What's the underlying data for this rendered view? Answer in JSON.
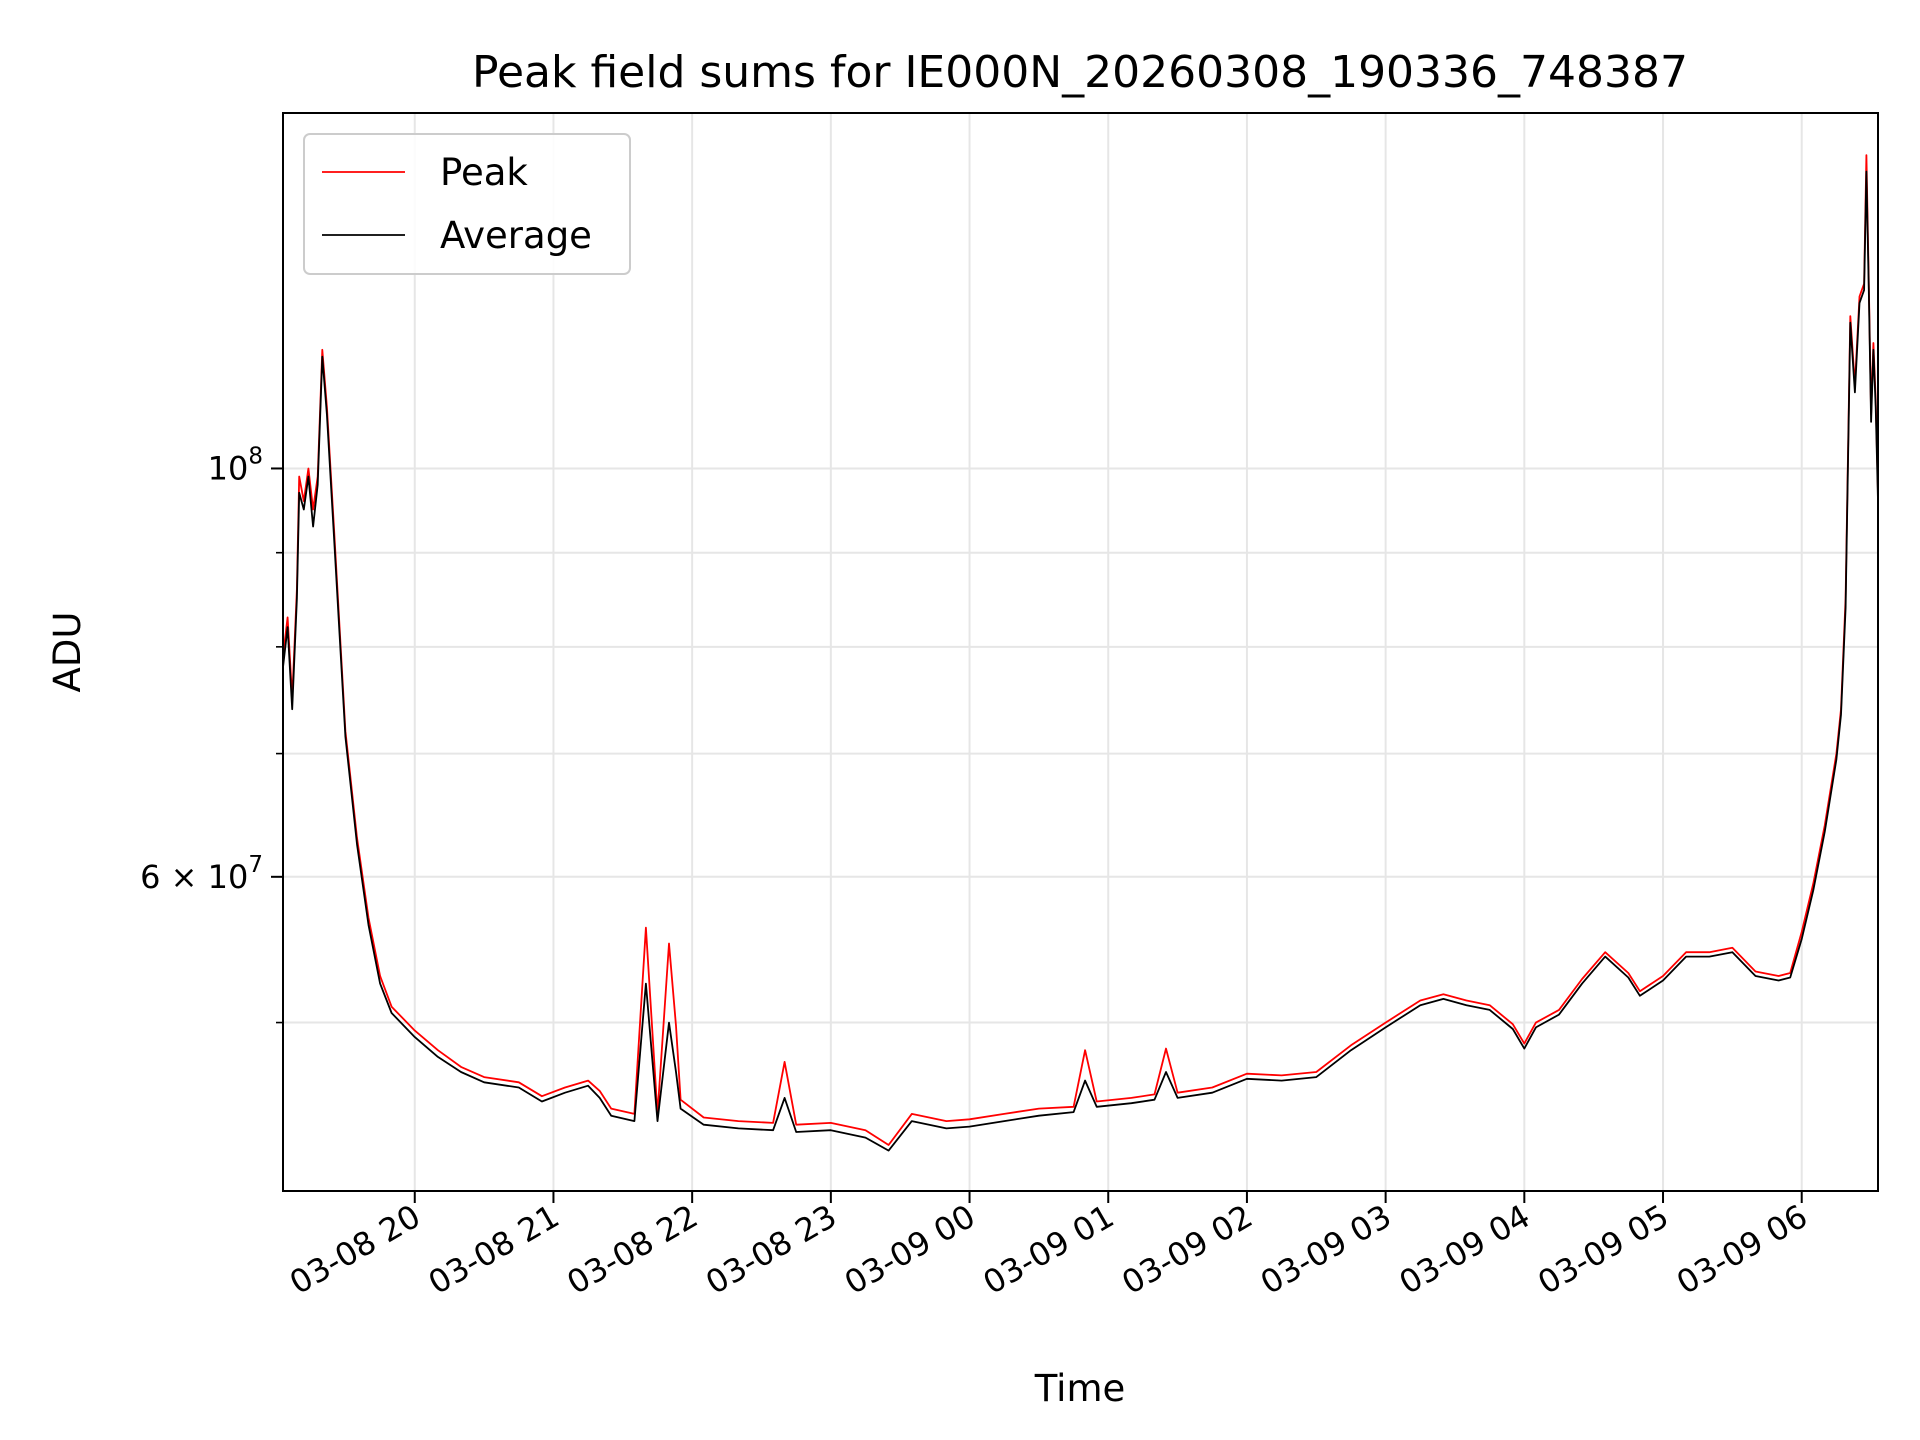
{
  "chart_data": {
    "type": "line",
    "title": "Peak field sums for IE000N_20260308_190336_748387",
    "xlabel": "Time",
    "ylabel": "ADU",
    "yscale": "log",
    "grid": true,
    "legend_position": "top-left",
    "xlim": [
      "03-08 19:03",
      "03-09 06:33"
    ],
    "ylim": [
      40500000,
      156000000
    ],
    "x_ticks": [
      "03-08 20",
      "03-08 21",
      "03-08 22",
      "03-08 23",
      "03-09 00",
      "03-09 01",
      "03-09 02",
      "03-09 03",
      "03-09 04",
      "03-09 05",
      "03-09 06"
    ],
    "y_tick_labels": [
      {
        "value": 100000000,
        "base": "10",
        "exp": "8",
        "prefix": ""
      },
      {
        "value": 60000000,
        "base": "10",
        "exp": "7",
        "prefix": "6 × "
      }
    ],
    "y_minor_ticks": [
      50000000,
      70000000,
      80000000,
      90000000
    ],
    "series": [
      {
        "name": "Peak",
        "color": "#ff0000",
        "points": [
          [
            "03-08 19:03",
            79000000
          ],
          [
            "03-08 19:05",
            83000000
          ],
          [
            "03-08 19:07",
            75000000
          ],
          [
            "03-08 19:09",
            86000000
          ],
          [
            "03-08 19:10",
            99000000
          ],
          [
            "03-08 19:12",
            96000000
          ],
          [
            "03-08 19:14",
            100000000
          ],
          [
            "03-08 19:16",
            95000000
          ],
          [
            "03-08 19:18",
            99000000
          ],
          [
            "03-08 19:20",
            116000000
          ],
          [
            "03-08 19:22",
            108000000
          ],
          [
            "03-08 19:25",
            93000000
          ],
          [
            "03-08 19:30",
            72000000
          ],
          [
            "03-08 19:35",
            63000000
          ],
          [
            "03-08 19:40",
            57000000
          ],
          [
            "03-08 19:45",
            53000000
          ],
          [
            "03-08 19:50",
            51000000
          ],
          [
            "03-08 20:00",
            49500000
          ],
          [
            "03-08 20:10",
            48300000
          ],
          [
            "03-08 20:20",
            47300000
          ],
          [
            "03-08 20:30",
            46700000
          ],
          [
            "03-08 20:45",
            46400000
          ],
          [
            "03-08 20:55",
            45600000
          ],
          [
            "03-08 21:05",
            46100000
          ],
          [
            "03-08 21:15",
            46500000
          ],
          [
            "03-08 21:20",
            45900000
          ],
          [
            "03-08 21:25",
            44900000
          ],
          [
            "03-08 21:35",
            44600000
          ],
          [
            "03-08 21:40",
            56300000
          ],
          [
            "03-08 21:45",
            44600000
          ],
          [
            "03-08 21:50",
            55200000
          ],
          [
            "03-08 21:53",
            49800000
          ],
          [
            "03-08 21:55",
            45400000
          ],
          [
            "03-08 22:05",
            44400000
          ],
          [
            "03-08 22:20",
            44200000
          ],
          [
            "03-08 22:35",
            44100000
          ],
          [
            "03-08 22:40",
            47600000
          ],
          [
            "03-08 22:45",
            44000000
          ],
          [
            "03-08 23:00",
            44100000
          ],
          [
            "03-08 23:15",
            43700000
          ],
          [
            "03-08 23:25",
            42900000
          ],
          [
            "03-08 23:35",
            44600000
          ],
          [
            "03-08 23:50",
            44200000
          ],
          [
            "03-09 00:00",
            44300000
          ],
          [
            "03-09 00:15",
            44600000
          ],
          [
            "03-09 00:30",
            44900000
          ],
          [
            "03-09 00:45",
            45000000
          ],
          [
            "03-09 00:50",
            48300000
          ],
          [
            "03-09 00:55",
            45300000
          ],
          [
            "03-09 01:10",
            45500000
          ],
          [
            "03-09 01:20",
            45700000
          ],
          [
            "03-09 01:25",
            48400000
          ],
          [
            "03-09 01:30",
            45800000
          ],
          [
            "03-09 01:45",
            46100000
          ],
          [
            "03-09 02:00",
            46900000
          ],
          [
            "03-09 02:15",
            46800000
          ],
          [
            "03-09 02:30",
            47000000
          ],
          [
            "03-09 02:45",
            48600000
          ],
          [
            "03-09 03:00",
            50000000
          ],
          [
            "03-09 03:15",
            51400000
          ],
          [
            "03-09 03:25",
            51800000
          ],
          [
            "03-09 03:35",
            51400000
          ],
          [
            "03-09 03:45",
            51100000
          ],
          [
            "03-09 03:55",
            49900000
          ],
          [
            "03-09 04:00",
            48700000
          ],
          [
            "03-09 04:05",
            50000000
          ],
          [
            "03-09 04:15",
            50800000
          ],
          [
            "03-09 04:25",
            52800000
          ],
          [
            "03-09 04:35",
            54600000
          ],
          [
            "03-09 04:45",
            53200000
          ],
          [
            "03-09 04:50",
            52000000
          ],
          [
            "03-09 05:00",
            53000000
          ],
          [
            "03-09 05:10",
            54600000
          ],
          [
            "03-09 05:20",
            54600000
          ],
          [
            "03-09 05:30",
            54900000
          ],
          [
            "03-09 05:40",
            53300000
          ],
          [
            "03-09 05:50",
            53000000
          ],
          [
            "03-09 05:55",
            53200000
          ],
          [
            "03-09 06:00",
            56000000
          ],
          [
            "03-09 06:05",
            59500000
          ],
          [
            "03-09 06:10",
            64000000
          ],
          [
            "03-09 06:15",
            70000000
          ],
          [
            "03-09 06:17",
            74000000
          ],
          [
            "03-09 06:19",
            85000000
          ],
          [
            "03-09 06:21",
            121000000
          ],
          [
            "03-09 06:23",
            111000000
          ],
          [
            "03-09 06:25",
            124000000
          ],
          [
            "03-09 06:27",
            126000000
          ],
          [
            "03-09 06:28",
            148000000
          ],
          [
            "03-09 06:29",
            126000000
          ],
          [
            "03-09 06:30",
            107000000
          ],
          [
            "03-09 06:31",
            117000000
          ],
          [
            "03-09 06:32",
            109000000
          ],
          [
            "03-09 06:33",
            97000000
          ]
        ]
      },
      {
        "name": "Average",
        "color": "#000000",
        "points": [
          [
            "03-08 19:03",
            78000000
          ],
          [
            "03-08 19:05",
            82000000
          ],
          [
            "03-08 19:07",
            74000000
          ],
          [
            "03-08 19:09",
            85000000
          ],
          [
            "03-08 19:10",
            97000000
          ],
          [
            "03-08 19:12",
            95000000
          ],
          [
            "03-08 19:14",
            99000000
          ],
          [
            "03-08 19:16",
            93000000
          ],
          [
            "03-08 19:18",
            98000000
          ],
          [
            "03-08 19:20",
            115000000
          ],
          [
            "03-08 19:22",
            107000000
          ],
          [
            "03-08 19:25",
            92000000
          ],
          [
            "03-08 19:30",
            71500000
          ],
          [
            "03-08 19:35",
            62500000
          ],
          [
            "03-08 19:40",
            56500000
          ],
          [
            "03-08 19:45",
            52500000
          ],
          [
            "03-08 19:50",
            50600000
          ],
          [
            "03-08 20:00",
            49100000
          ],
          [
            "03-08 20:10",
            47900000
          ],
          [
            "03-08 20:20",
            47000000
          ],
          [
            "03-08 20:30",
            46400000
          ],
          [
            "03-08 20:45",
            46100000
          ],
          [
            "03-08 20:55",
            45300000
          ],
          [
            "03-08 21:05",
            45800000
          ],
          [
            "03-08 21:15",
            46200000
          ],
          [
            "03-08 21:20",
            45500000
          ],
          [
            "03-08 21:25",
            44500000
          ],
          [
            "03-08 21:35",
            44200000
          ],
          [
            "03-08 21:40",
            52500000
          ],
          [
            "03-08 21:45",
            44200000
          ],
          [
            "03-08 21:50",
            50000000
          ],
          [
            "03-08 21:53",
            47000000
          ],
          [
            "03-08 21:55",
            44900000
          ],
          [
            "03-08 22:05",
            44000000
          ],
          [
            "03-08 22:20",
            43800000
          ],
          [
            "03-08 22:35",
            43700000
          ],
          [
            "03-08 22:40",
            45500000
          ],
          [
            "03-08 22:45",
            43600000
          ],
          [
            "03-08 23:00",
            43700000
          ],
          [
            "03-08 23:15",
            43300000
          ],
          [
            "03-08 23:25",
            42600000
          ],
          [
            "03-08 23:35",
            44200000
          ],
          [
            "03-08 23:50",
            43800000
          ],
          [
            "03-09 00:00",
            43900000
          ],
          [
            "03-09 00:15",
            44200000
          ],
          [
            "03-09 00:30",
            44500000
          ],
          [
            "03-09 00:45",
            44700000
          ],
          [
            "03-09 00:50",
            46500000
          ],
          [
            "03-09 00:55",
            45000000
          ],
          [
            "03-09 01:10",
            45200000
          ],
          [
            "03-09 01:20",
            45400000
          ],
          [
            "03-09 01:25",
            47000000
          ],
          [
            "03-09 01:30",
            45500000
          ],
          [
            "03-09 01:45",
            45800000
          ],
          [
            "03-09 02:00",
            46600000
          ],
          [
            "03-09 02:15",
            46500000
          ],
          [
            "03-09 02:30",
            46700000
          ],
          [
            "03-09 02:45",
            48300000
          ],
          [
            "03-09 03:00",
            49700000
          ],
          [
            "03-09 03:15",
            51100000
          ],
          [
            "03-09 03:25",
            51500000
          ],
          [
            "03-09 03:35",
            51100000
          ],
          [
            "03-09 03:45",
            50800000
          ],
          [
            "03-09 03:55",
            49600000
          ],
          [
            "03-09 04:00",
            48400000
          ],
          [
            "03-09 04:05",
            49700000
          ],
          [
            "03-09 04:15",
            50500000
          ],
          [
            "03-09 04:25",
            52500000
          ],
          [
            "03-09 04:35",
            54300000
          ],
          [
            "03-09 04:45",
            52900000
          ],
          [
            "03-09 04:50",
            51700000
          ],
          [
            "03-09 05:00",
            52700000
          ],
          [
            "03-09 05:10",
            54300000
          ],
          [
            "03-09 05:20",
            54300000
          ],
          [
            "03-09 05:30",
            54600000
          ],
          [
            "03-09 05:40",
            53000000
          ],
          [
            "03-09 05:50",
            52700000
          ],
          [
            "03-09 05:55",
            52900000
          ],
          [
            "03-09 06:00",
            55500000
          ],
          [
            "03-09 06:05",
            59000000
          ],
          [
            "03-09 06:10",
            63500000
          ],
          [
            "03-09 06:15",
            69500000
          ],
          [
            "03-09 06:17",
            73500000
          ],
          [
            "03-09 06:19",
            84000000
          ],
          [
            "03-09 06:21",
            120000000
          ],
          [
            "03-09 06:23",
            110000000
          ],
          [
            "03-09 06:25",
            123000000
          ],
          [
            "03-09 06:27",
            125000000
          ],
          [
            "03-09 06:28",
            145000000
          ],
          [
            "03-09 06:29",
            125000000
          ],
          [
            "03-09 06:30",
            106000000
          ],
          [
            "03-09 06:31",
            116000000
          ],
          [
            "03-09 06:32",
            108000000
          ],
          [
            "03-09 06:33",
            96000000
          ]
        ]
      }
    ]
  }
}
